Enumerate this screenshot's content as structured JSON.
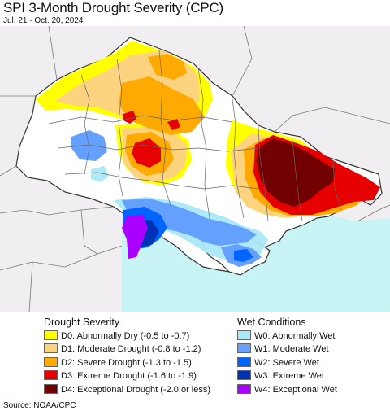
{
  "header": {
    "title": "SPI 3-Month Drought Severity (CPC)",
    "subtitle": "Jul. 21 - Oct. 20, 2024"
  },
  "map": {
    "sea_color": "#c8f4f6",
    "land_color": "#ffffff",
    "outside_color": "#f1eef1"
  },
  "legend": {
    "drought": {
      "heading": "Drought Severity",
      "items": [
        {
          "label": "D0: Abnormally Dry (-0.5 to -0.7)",
          "color": "#ffff00"
        },
        {
          "label": "D1: Moderate Drought (-0.8 to -1.2)",
          "color": "#fcd37f"
        },
        {
          "label": "D2: Severe Drought (-1.3 to -1.5)",
          "color": "#ffaa00"
        },
        {
          "label": "D3: Extreme Drought (-1.6 to -1.9)",
          "color": "#e60000"
        },
        {
          "label": "D4: Exceptional Drought (-2.0 or less)",
          "color": "#730000"
        }
      ]
    },
    "wet": {
      "heading": "Wet Conditions",
      "items": [
        {
          "label": "W0: Abnormally Wet",
          "color": "#aae8f8"
        },
        {
          "label": "W1: Moderate Wet",
          "color": "#64a0ff"
        },
        {
          "label": "W2: Severe Wet",
          "color": "#0064ff"
        },
        {
          "label": "W3: Extreme Wet",
          "color": "#0032b4"
        },
        {
          "label": "W4: Exceptional Wet",
          "color": "#aa00ff"
        }
      ]
    }
  },
  "footer": {
    "source": "Source: NOAA/CPC"
  }
}
